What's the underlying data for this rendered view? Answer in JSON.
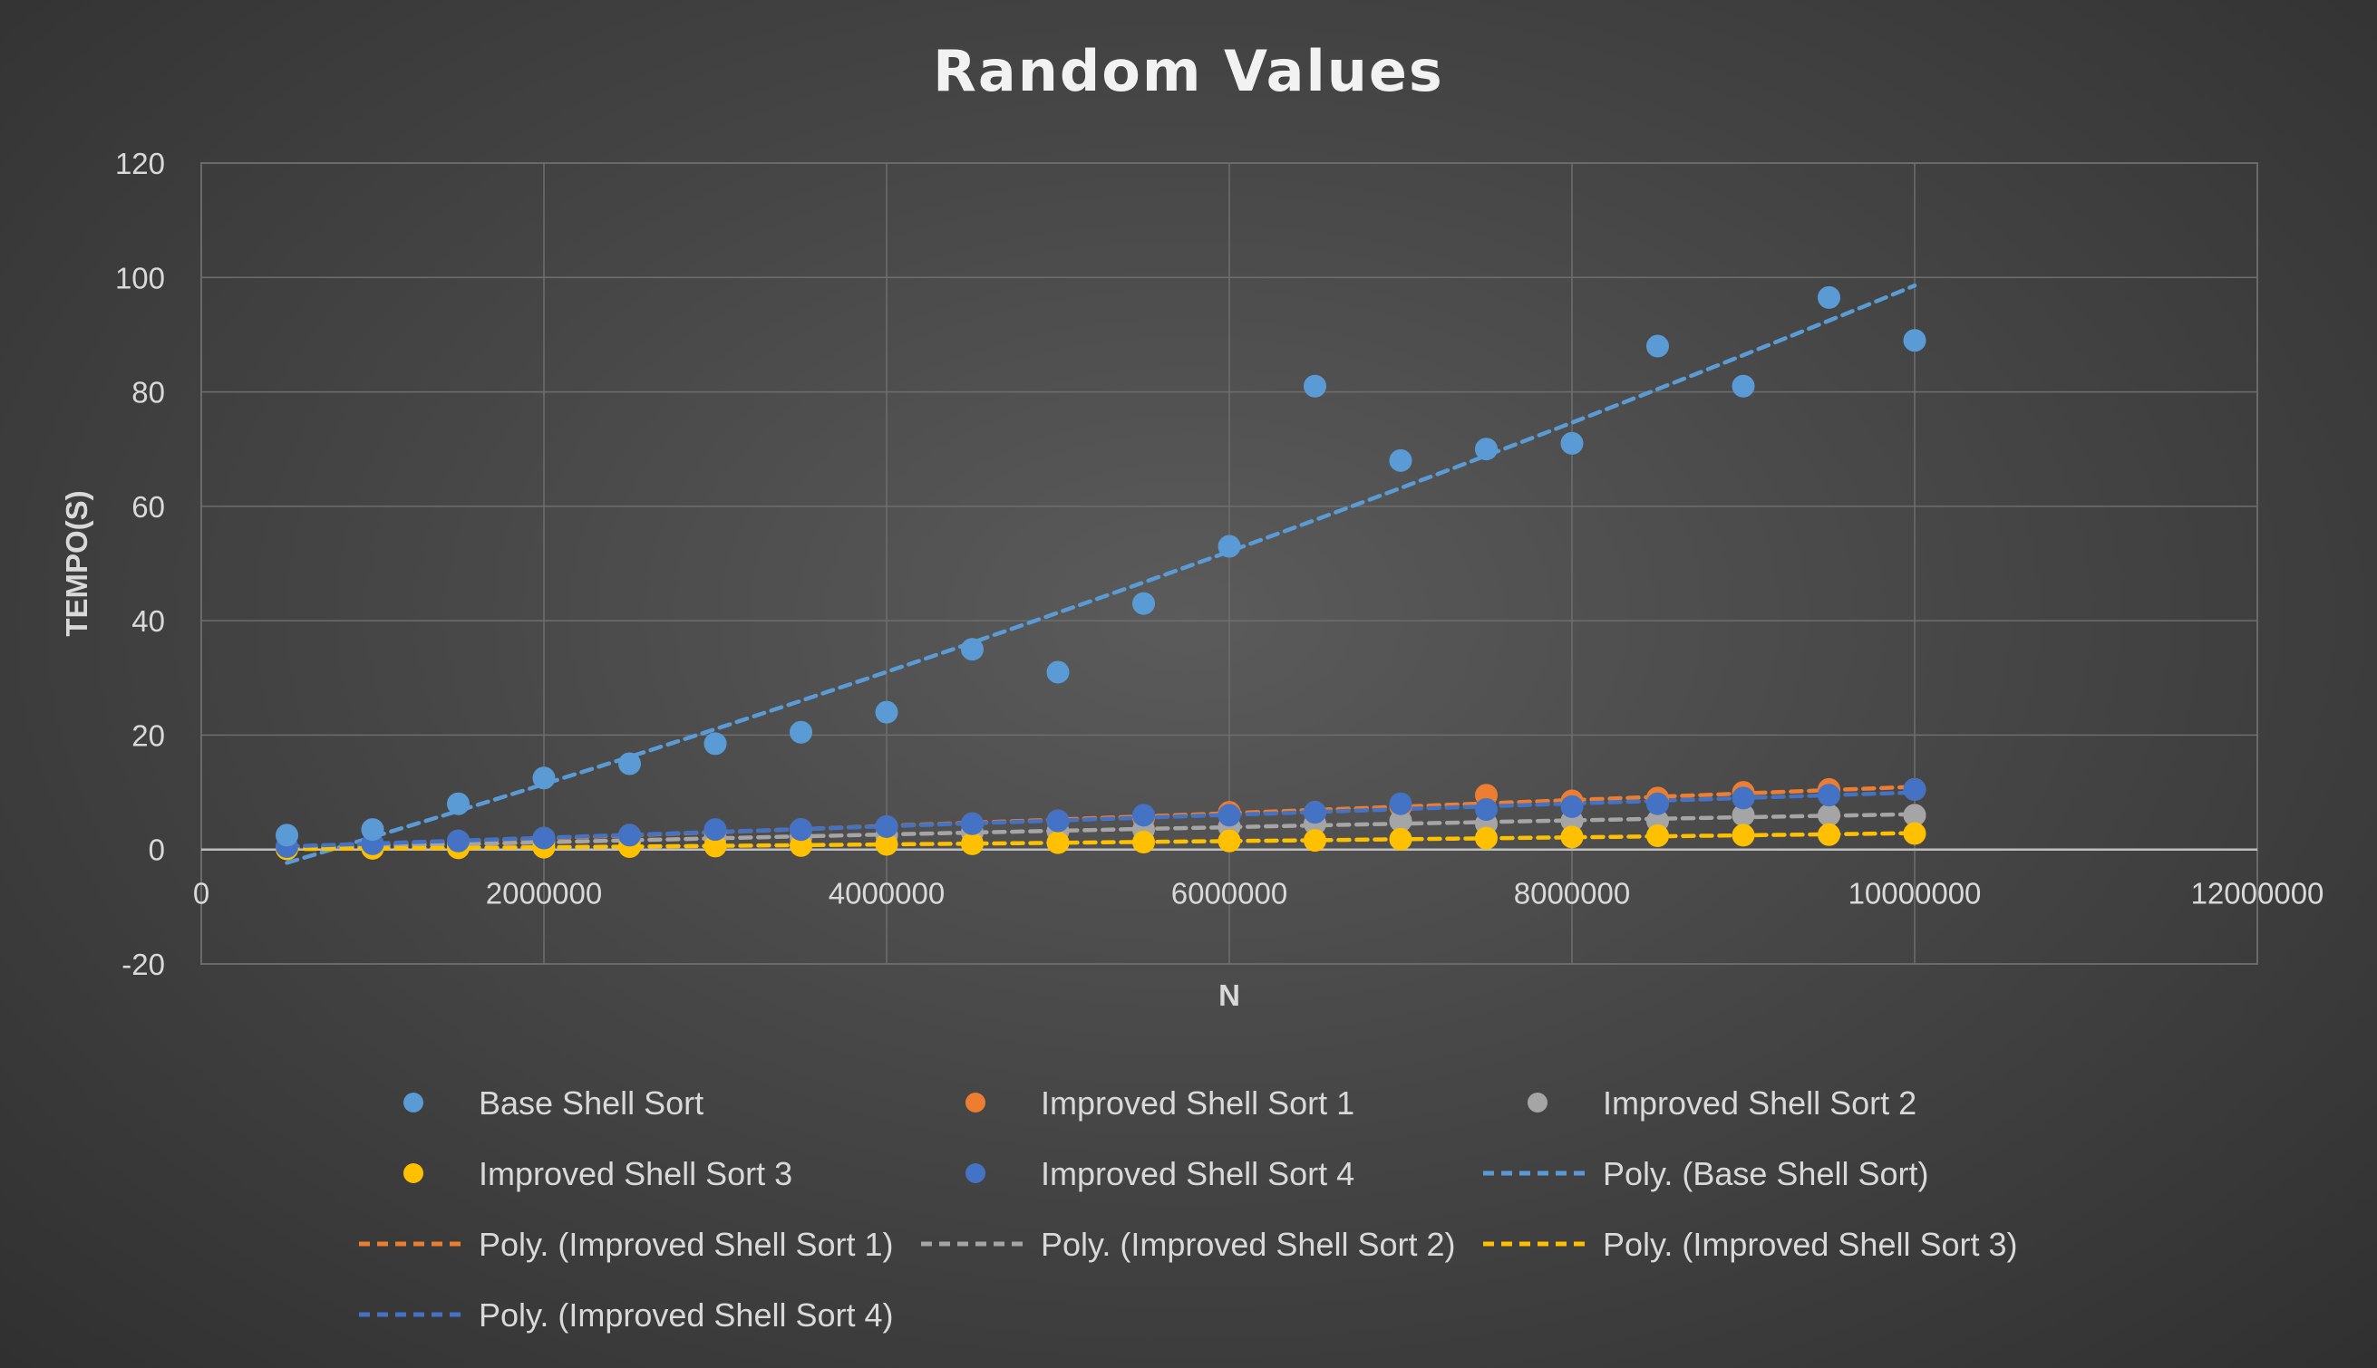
{
  "chart_data": {
    "type": "scatter",
    "title": "Random Values",
    "xlabel": "N",
    "ylabel": "TEMPO(S)",
    "xlim": [
      0,
      12000000
    ],
    "ylim": [
      -20,
      120
    ],
    "x_ticks": [
      "0",
      "2000000",
      "4000000",
      "6000000",
      "8000000",
      "10000000",
      "12000000"
    ],
    "y_ticks": [
      "120",
      "100",
      "80",
      "60",
      "40",
      "20",
      "0",
      "-20"
    ],
    "grid": true,
    "legend_position": "bottom",
    "x": [
      500000,
      1000000,
      1500000,
      2000000,
      2500000,
      3000000,
      3500000,
      4000000,
      4500000,
      5000000,
      5500000,
      6000000,
      6500000,
      7000000,
      7500000,
      8000000,
      8500000,
      9000000,
      9500000,
      10000000
    ],
    "series": [
      {
        "name": "Base Shell Sort",
        "color": "#5b9bd5",
        "values": [
          2.5,
          3.5,
          8,
          12.5,
          15,
          18.5,
          20.5,
          24,
          35,
          31,
          43,
          53,
          81,
          68,
          70,
          71,
          88,
          81,
          96.5,
          89
        ]
      },
      {
        "name": "Improved Shell Sort 1",
        "color": "#ed7d31",
        "values": [
          0.4,
          0.8,
          1.5,
          2,
          2.5,
          3.2,
          3.5,
          4,
          4.5,
          5,
          5.5,
          6.5,
          6.5,
          7.5,
          9.5,
          8.5,
          9,
          10,
          10.5,
          10.5
        ]
      },
      {
        "name": "Improved Shell Sort 2",
        "color": "#a5a5a5",
        "values": [
          0.3,
          0.5,
          1,
          1.2,
          1.5,
          2,
          2.2,
          2.5,
          3,
          3.2,
          3.5,
          4,
          4.5,
          5,
          4.5,
          5,
          5,
          6,
          6,
          6
        ]
      },
      {
        "name": "Improved Shell Sort 3",
        "color": "#ffc000",
        "values": [
          0.1,
          0.2,
          0.3,
          0.4,
          0.5,
          0.6,
          0.7,
          0.9,
          1,
          1.2,
          1.3,
          1.5,
          1.6,
          1.8,
          2,
          2.2,
          2.4,
          2.5,
          2.6,
          2.8
        ]
      },
      {
        "name": "Improved Shell Sort 4",
        "color": "#4472c4",
        "values": [
          0.5,
          1,
          1.5,
          2,
          2.5,
          3.5,
          3.5,
          4,
          4.5,
          5,
          6,
          6,
          6.5,
          8,
          7,
          7.5,
          8,
          9,
          9.5,
          10.5
        ]
      }
    ],
    "trendlines": [
      {
        "name": "Poly. (Base Shell Sort)",
        "color": "#5b9bd5",
        "type": "polynomial",
        "from_series": 0
      },
      {
        "name": "Poly. (Improved Shell Sort 1)",
        "color": "#ed7d31",
        "type": "polynomial",
        "from_series": 1
      },
      {
        "name": "Poly. (Improved Shell Sort 2)",
        "color": "#a5a5a5",
        "type": "polynomial",
        "from_series": 2
      },
      {
        "name": "Poly. (Improved Shell Sort 3)",
        "color": "#ffc000",
        "type": "polynomial",
        "from_series": 3
      },
      {
        "name": "Poly. (Improved Shell Sort 4)",
        "color": "#4472c4",
        "type": "polynomial",
        "from_series": 4
      }
    ]
  }
}
